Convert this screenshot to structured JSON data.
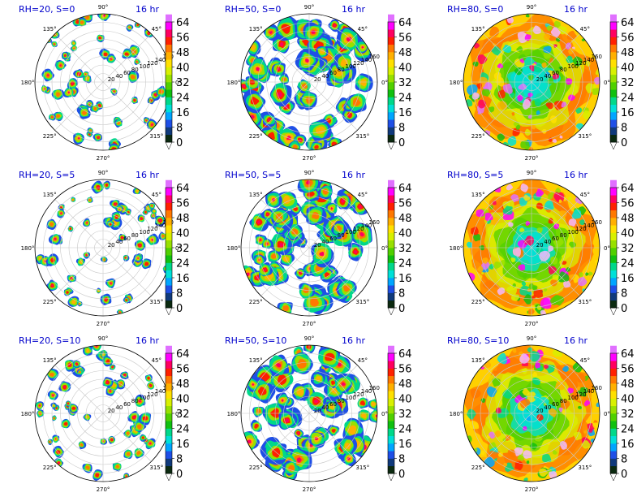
{
  "colorbar": {
    "ticks": [
      "0",
      "8",
      "16",
      "24",
      "32",
      "40",
      "48",
      "56",
      "64"
    ],
    "levels": [
      0,
      4,
      8,
      12,
      16,
      20,
      24,
      28,
      32,
      36,
      40,
      44,
      48,
      52,
      56,
      60,
      64
    ],
    "colors": [
      "#0b2a10",
      "#103a7c",
      "#1f4fe6",
      "#00a5ff",
      "#00e0d8",
      "#00d88a",
      "#10c010",
      "#50d000",
      "#98e000",
      "#d8f000",
      "#ffe000",
      "#ffb000",
      "#ff7800",
      "#ff2000",
      "#ff0060",
      "#ff00ff",
      "#e070ff",
      "#f4b8ff"
    ]
  },
  "angle_labels": [
    "0°",
    "45°",
    "90°",
    "135°",
    "180°",
    "225°",
    "270°",
    "315°"
  ],
  "radial_labels": [
    "20",
    "40",
    "60",
    "80",
    "100",
    "120",
    "140",
    "160"
  ],
  "chart_data": [
    {
      "type": "heatmap",
      "title": "RH=20, S=0",
      "time_label": "16 hr",
      "rh": 20,
      "s": 0,
      "coverage": 0.25
    },
    {
      "type": "heatmap",
      "title": "RH=50, S=0",
      "time_label": "16 hr",
      "rh": 50,
      "s": 0,
      "coverage": 0.55
    },
    {
      "type": "heatmap",
      "title": "RH=80, S=0",
      "time_label": "16 hr",
      "rh": 80,
      "s": 0,
      "coverage": 1.0
    },
    {
      "type": "heatmap",
      "title": "RH=20, S=5",
      "time_label": "16 hr",
      "rh": 20,
      "s": 5,
      "coverage": 0.25
    },
    {
      "type": "heatmap",
      "title": "RH=50, S=5",
      "time_label": "16 hr",
      "rh": 50,
      "s": 5,
      "coverage": 0.55
    },
    {
      "type": "heatmap",
      "title": "RH=80, S=5",
      "time_label": "16 hr",
      "rh": 80,
      "s": 5,
      "coverage": 1.0
    },
    {
      "type": "heatmap",
      "title": "RH=20, S=10",
      "time_label": "16 hr",
      "rh": 20,
      "s": 10,
      "coverage": 0.25
    },
    {
      "type": "heatmap",
      "title": "RH=50, S=10",
      "time_label": "16 hr",
      "rh": 50,
      "s": 10,
      "coverage": 0.55
    },
    {
      "type": "heatmap",
      "title": "RH=80, S=10",
      "time_label": "16 hr",
      "rh": 80,
      "s": 10,
      "coverage": 1.0
    }
  ]
}
